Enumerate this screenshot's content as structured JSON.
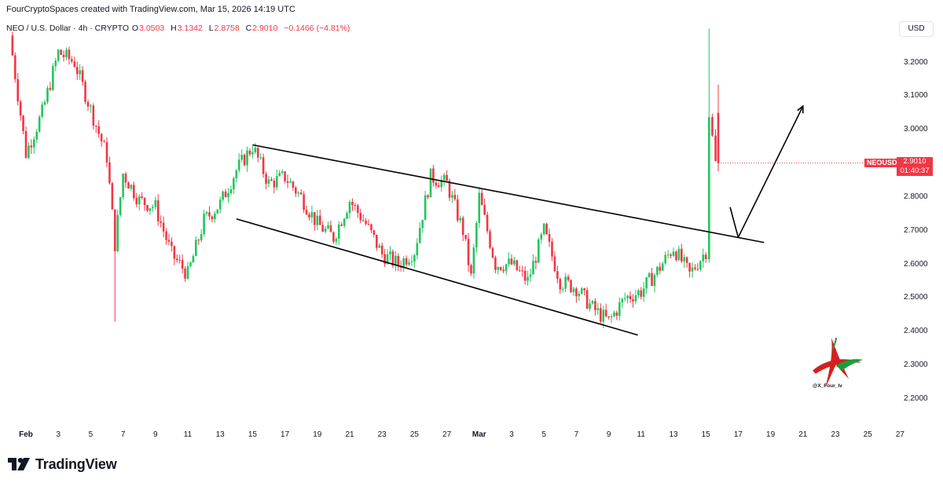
{
  "header": {
    "credit": "FourCryptoSpaces created with TradingView.com, Mar 15, 2026 14:19 UTC"
  },
  "legend": {
    "symbol": "NEO / U.S. Dollar · 4h · CRYPTO",
    "o_label": "O",
    "o_value": "3.0503",
    "h_label": "H",
    "h_value": "3.1342",
    "l_label": "L",
    "l_value": "2.8758",
    "c_label": "C",
    "c_value": "2.9010",
    "change": "−0.1466 (−4.81%)"
  },
  "price_axis": {
    "currency": "USD",
    "ticks": [
      "3.2000",
      "3.1000",
      "3.0000",
      "2.9000",
      "2.8000",
      "2.7000",
      "2.6000",
      "2.5000",
      "2.4000",
      "2.3000",
      "2.2000"
    ]
  },
  "last_price": {
    "symbol": "NEOUSD",
    "value": "2.9010",
    "countdown": "01:40:37"
  },
  "time_axis": {
    "ticks": [
      "Feb",
      "3",
      "5",
      "7",
      "9",
      "11",
      "13",
      "15",
      "17",
      "19",
      "21",
      "23",
      "25",
      "27",
      "Mar",
      "3",
      "5",
      "7",
      "9",
      "11",
      "13",
      "15",
      "17",
      "19",
      "21",
      "23",
      "25",
      "27"
    ]
  },
  "branding": {
    "logo_text": "TradingView",
    "watermark_handle": "@X_Four_Iv"
  },
  "colors": {
    "up": "#089981",
    "up_body": "#22c55e",
    "down": "#f23645",
    "line": "#000000",
    "grid": "#ffffff"
  },
  "chart_data": {
    "type": "candlestick",
    "symbol": "NEOUSD",
    "timeframe": "4h",
    "ylim": [
      2.15,
      3.32
    ],
    "y_ticks": [
      3.2,
      3.1,
      3.0,
      2.9,
      2.8,
      2.7,
      2.6,
      2.5,
      2.4,
      2.3,
      2.2
    ],
    "x_range_days": [
      "2026-01-31",
      "2026-03-27"
    ],
    "x_tick_dates": [
      "2026-02-01",
      "2026-02-03",
      "2026-02-05",
      "2026-02-07",
      "2026-02-09",
      "2026-02-11",
      "2026-02-13",
      "2026-02-15",
      "2026-02-17",
      "2026-02-19",
      "2026-02-21",
      "2026-02-23",
      "2026-02-25",
      "2026-02-27",
      "2026-03-01",
      "2026-03-03",
      "2026-03-05",
      "2026-03-07",
      "2026-03-09",
      "2026-03-11",
      "2026-03-13",
      "2026-03-15",
      "2026-03-17",
      "2026-03-19",
      "2026-03-21",
      "2026-03-23",
      "2026-03-25",
      "2026-03-27"
    ],
    "close_path": [
      [
        "2026-01-31",
        3.28
      ],
      [
        "2026-02-01",
        2.93
      ],
      [
        "2026-02-02",
        3.05
      ],
      [
        "2026-02-03",
        3.23
      ],
      [
        "2026-02-04",
        3.2
      ],
      [
        "2026-02-05",
        3.06
      ],
      [
        "2026-02-06",
        2.92
      ],
      [
        "2026-02-06.5",
        2.66
      ],
      [
        "2026-02-07",
        2.87
      ],
      [
        "2026-02-08",
        2.79
      ],
      [
        "2026-02-09",
        2.77
      ],
      [
        "2026-02-10",
        2.63
      ],
      [
        "2026-02-11",
        2.57
      ],
      [
        "2026-02-12",
        2.73
      ],
      [
        "2026-02-13",
        2.78
      ],
      [
        "2026-02-14",
        2.88
      ],
      [
        "2026-02-15",
        2.95
      ],
      [
        "2026-02-16",
        2.84
      ],
      [
        "2026-02-17",
        2.86
      ],
      [
        "2026-02-18",
        2.8
      ],
      [
        "2026-02-19",
        2.72
      ],
      [
        "2026-02-20",
        2.68
      ],
      [
        "2026-02-21",
        2.79
      ],
      [
        "2026-02-22",
        2.72
      ],
      [
        "2026-02-23",
        2.63
      ],
      [
        "2026-02-24",
        2.6
      ],
      [
        "2026-02-25",
        2.64
      ],
      [
        "2026-02-26",
        2.86
      ],
      [
        "2026-02-27",
        2.84
      ],
      [
        "2026-02-28",
        2.7
      ],
      [
        "2026-02-28.5",
        2.56
      ],
      [
        "2026-03-01",
        2.8
      ],
      [
        "2026-03-02",
        2.6
      ],
      [
        "2026-03-03",
        2.6
      ],
      [
        "2026-03-04",
        2.55
      ],
      [
        "2026-03-05",
        2.7
      ],
      [
        "2026-03-06",
        2.55
      ],
      [
        "2026-03-07",
        2.53
      ],
      [
        "2026-03-08",
        2.47
      ],
      [
        "2026-03-09",
        2.43
      ],
      [
        "2026-03-10",
        2.5
      ],
      [
        "2026-03-11",
        2.52
      ],
      [
        "2026-03-12",
        2.58
      ],
      [
        "2026-03-13",
        2.65
      ],
      [
        "2026-03-14",
        2.57
      ],
      [
        "2026-03-15",
        2.64
      ],
      [
        "2026-03-15.2",
        3.05
      ],
      [
        "2026-03-15.6",
        2.9
      ]
    ],
    "extreme_wicks": [
      {
        "date": "2026-02-06.5",
        "low": 2.43
      },
      {
        "date": "2026-03-15.2",
        "high": 3.3
      }
    ],
    "last": {
      "open": 3.0503,
      "high": 3.1342,
      "low": 2.8758,
      "close": 2.901,
      "change": -0.1466,
      "change_pct": -4.81
    },
    "annotations": {
      "upper_trendline": [
        [
          "2026-02-15",
          2.955
        ],
        [
          "2026-03-18.6",
          2.665
        ]
      ],
      "lower_trendline": [
        [
          "2026-02-14",
          2.735
        ],
        [
          "2026-03-10.8",
          2.39
        ]
      ],
      "projection": [
        [
          "2026-03-16.5",
          2.77
        ],
        [
          "2026-03-17",
          2.68
        ],
        [
          "2026-03-21",
          3.07
        ]
      ]
    }
  }
}
